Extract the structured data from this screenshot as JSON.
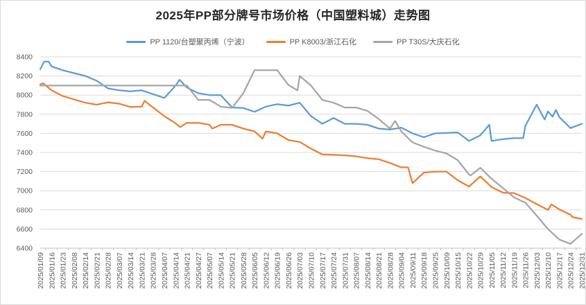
{
  "chart_data": {
    "type": "line",
    "title": "2025年PP部分牌号市场价格（中国塑料城）走势图",
    "xlabel": "",
    "ylabel": "",
    "ylim": [
      6400,
      8400
    ],
    "y_tick_step": 200,
    "grid": true,
    "legend_position": "top",
    "categories": [
      "2025/01/09",
      "2025/01/16",
      "2025/01/23",
      "2025/02/08",
      "2025/02/14",
      "2025/02/21",
      "2025/02/28",
      "2025/03/07",
      "2025/03/14",
      "2025/03/21",
      "2025/03/28",
      "2025/04/07",
      "2025/04/14",
      "2025/04/21",
      "2025/04/27",
      "2025/05/07",
      "2025/05/14",
      "2025/05/21",
      "2025/05/28",
      "2025/06/05",
      "2025/06/12",
      "2025/06/19",
      "2025/06/26",
      "2025/07/03",
      "2025/07/10",
      "2025/07/17",
      "2025/07/24",
      "2025/07/31",
      "2025/08/07",
      "2025/08/14",
      "2025/08/21",
      "2025/08/28",
      "2025/09/04",
      "2025/09/11",
      "2025/09/18",
      "2025/09/25",
      "2025/10/09",
      "2025/10/15",
      "2025/10/22",
      "2025/10/29",
      "2025/11/05",
      "2025/11/12",
      "2025/11/19",
      "2025/11/26",
      "2025/12/03",
      "2025/12/10",
      "2025/12/17",
      "2025/12/24",
      "2025/12/31"
    ],
    "series": [
      {
        "name": "PP 1120/台塑聚丙烯（宁波）",
        "color": "#5B9BD5",
        "values": [
          8270,
          8300,
          8260,
          8230,
          8200,
          8150,
          8070,
          8050,
          8040,
          8050,
          8010,
          7970,
          8100,
          8080,
          8020,
          8000,
          8000,
          7870,
          7865,
          7825,
          7880,
          7905,
          7890,
          7920,
          7780,
          7700,
          7760,
          7700,
          7700,
          7690,
          7650,
          7640,
          7660,
          7600,
          7560,
          7600,
          7605,
          7610,
          7520,
          7580,
          7520,
          7540,
          7550,
          7680,
          7900,
          7830,
          7770,
          7655,
          7700
        ],
        "extra_points": [
          [
            0.35,
            8350
          ],
          [
            0.75,
            8350
          ],
          [
            12.35,
            8160
          ],
          [
            39.8,
            7690
          ],
          [
            42.8,
            7550
          ],
          [
            44.7,
            7745
          ],
          [
            45.4,
            7775
          ],
          [
            45.7,
            7845
          ]
        ]
      },
      {
        "name": "PP K8003/浙江石化",
        "color": "#ED7D31",
        "values": [
          8110,
          8050,
          7990,
          7955,
          7920,
          7900,
          7925,
          7910,
          7875,
          7880,
          7870,
          7780,
          7705,
          7710,
          7710,
          7690,
          7690,
          7690,
          7650,
          7620,
          7620,
          7600,
          7530,
          7510,
          7440,
          7380,
          7375,
          7370,
          7360,
          7340,
          7330,
          7290,
          7245,
          7080,
          7190,
          7200,
          7200,
          7110,
          7045,
          7150,
          7040,
          6980,
          6975,
          6925,
          6860,
          6800,
          6805,
          6750,
          6705
        ],
        "extra_points": [
          [
            0.25,
            8125
          ],
          [
            9.25,
            7940
          ],
          [
            12.4,
            7665
          ],
          [
            15.25,
            7650
          ],
          [
            19.7,
            7545
          ],
          [
            32.6,
            7245
          ],
          [
            45.3,
            6858
          ],
          [
            47.15,
            6725
          ]
        ]
      },
      {
        "name": "PP T30S/大庆石化",
        "color": "#A5A5A5",
        "values": [
          8100,
          8100,
          8100,
          8100,
          8100,
          8100,
          8100,
          8100,
          8100,
          8100,
          8100,
          8100,
          8100,
          8100,
          7950,
          7950,
          7880,
          7865,
          8020,
          8260,
          8260,
          8260,
          8105,
          8200,
          8100,
          7950,
          7920,
          7870,
          7870,
          7835,
          7750,
          7650,
          7620,
          7505,
          7460,
          7420,
          7390,
          7320,
          7170,
          7240,
          7125,
          7030,
          6930,
          6875,
          6740,
          6600,
          6490,
          6445,
          6550
        ],
        "extra_points": [
          [
            22.8,
            8050
          ],
          [
            31.45,
            7730
          ],
          [
            38.15,
            7160
          ]
        ]
      }
    ]
  }
}
